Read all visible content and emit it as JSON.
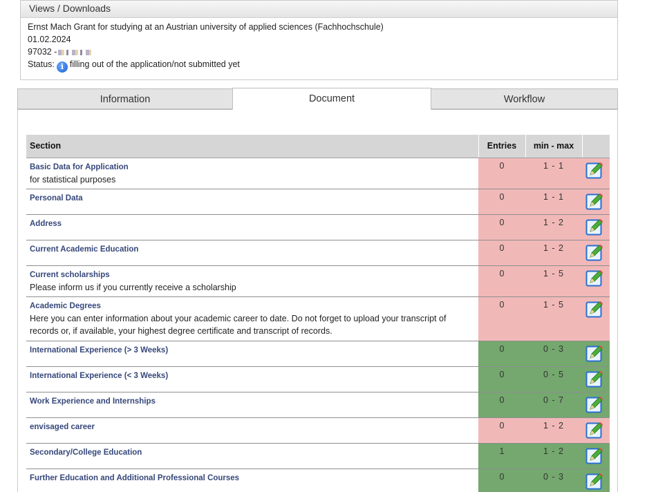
{
  "views": {
    "header": "Views / Downloads",
    "grant_title": "Ernst Mach Grant for studying at an Austrian university of applied sciences (Fachhochschule)",
    "date": "01.02.2024",
    "application_id": "97032 -",
    "status_label": "Status:",
    "status_icon": "info-icon",
    "status_text": "filling out of the application/not submitted yet"
  },
  "tabs": [
    {
      "label": "Information",
      "active": false
    },
    {
      "label": "Document",
      "active": true
    },
    {
      "label": "Workflow",
      "active": false
    }
  ],
  "table": {
    "headers": {
      "section": "Section",
      "entries": "Entries",
      "minmax": "min - max",
      "edit": ""
    },
    "rows": [
      {
        "title": "Basic Data for Application",
        "desc": "for statistical purposes",
        "entries": "0",
        "minmax": "1 - 1",
        "status": "red"
      },
      {
        "title": "Personal Data",
        "desc": "",
        "entries": "0",
        "minmax": "1 - 1",
        "status": "red"
      },
      {
        "title": "Address",
        "desc": "",
        "entries": "0",
        "minmax": "1 - 2",
        "status": "red"
      },
      {
        "title": "Current Academic Education",
        "desc": "",
        "entries": "0",
        "minmax": "1 - 2",
        "status": "red"
      },
      {
        "title": "Current scholarships",
        "desc": "Please inform us if you currently receive a scholarship",
        "entries": "0",
        "minmax": "1 - 5",
        "status": "red"
      },
      {
        "title": "Academic Degrees",
        "desc": "Here you can enter information about your academic career to date. Do not forget to upload your transcript of records or, if available, your highest degree certificate and transcript of records.",
        "entries": "0",
        "minmax": "1 - 5",
        "status": "red"
      },
      {
        "title": "International Experience (> 3 Weeks)",
        "desc": "",
        "entries": "0",
        "minmax": "0 - 3",
        "status": "green"
      },
      {
        "title": "International Experience (< 3 Weeks)",
        "desc": "",
        "entries": "0",
        "minmax": "0 - 5",
        "status": "green"
      },
      {
        "title": "Work Experience and Internships",
        "desc": "",
        "entries": "0",
        "minmax": "0 - 7",
        "status": "green"
      },
      {
        "title": "envisaged career",
        "desc": "",
        "entries": "0",
        "minmax": "1 - 2",
        "status": "red"
      },
      {
        "title": "Secondary/College Education",
        "desc": "",
        "entries": "1",
        "minmax": "1 - 2",
        "status": "green"
      },
      {
        "title": "Further Education and Additional Professional Courses",
        "desc": "",
        "entries": "0",
        "minmax": "0 - 3",
        "status": "green"
      }
    ],
    "edit_icon": "edit-pencil-icon"
  },
  "colors": {
    "required_missing": "#f1b8b8",
    "ok": "#74a86e",
    "link": "#36487a"
  }
}
